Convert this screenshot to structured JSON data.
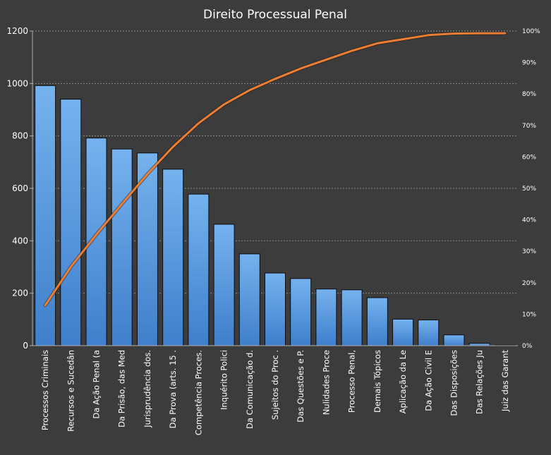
{
  "chart_data": {
    "type": "bar",
    "title": "Direito Processual Penal",
    "categories": [
      "Processos Criminais",
      "Recursos e Sucedân",
      "Da Ação Penal (a",
      "Da Prisão, das Med",
      "Jurisprudência dos.",
      "Da Prova (arts. 15 .",
      "Competência Proces.",
      "Inquérito Polici",
      "Da Comunicação d.",
      "Sujeitos do Proc .",
      "Das Questões e P.",
      "Nulidades Proce",
      "Processo Penal,",
      "Demais Tópicos",
      "Aplicação da Le",
      "Da Ação Civil E",
      "Das Disposições",
      "Das Relações Ju",
      "Juiz das Garant"
    ],
    "series": [
      {
        "type": "bar",
        "values": [
          992,
          940,
          792,
          750,
          735,
          673,
          578,
          463,
          350,
          277,
          256,
          216,
          213,
          183,
          101,
          98,
          41,
          9,
          2
        ]
      },
      {
        "type": "line",
        "axis": "right",
        "values": [
          12.8,
          25.0,
          35.3,
          45.0,
          54.5,
          63.2,
          70.7,
          76.7,
          81.2,
          84.8,
          88.1,
          90.9,
          93.7,
          96.1,
          97.4,
          98.7,
          99.2,
          99.3,
          99.3
        ]
      }
    ],
    "ylim": [
      0,
      1200
    ],
    "yticks": [
      0,
      200,
      400,
      600,
      800,
      1000,
      1200
    ],
    "y2lim": [
      0,
      100
    ],
    "y2ticks": [
      "0%",
      "10%",
      "20%",
      "30%",
      "40%",
      "50%",
      "60%",
      "70%",
      "80%",
      "90%",
      "100%"
    ],
    "grid": true,
    "legend": "none",
    "colors": {
      "background": "#3c3c3c",
      "bar_top": "#75b2ee",
      "bar_bottom": "#3f7fcb",
      "bar_stroke": "#0d0d0d",
      "line": "#ed7d31",
      "grid": "#8a8a8a",
      "text": "#ffffff"
    }
  }
}
